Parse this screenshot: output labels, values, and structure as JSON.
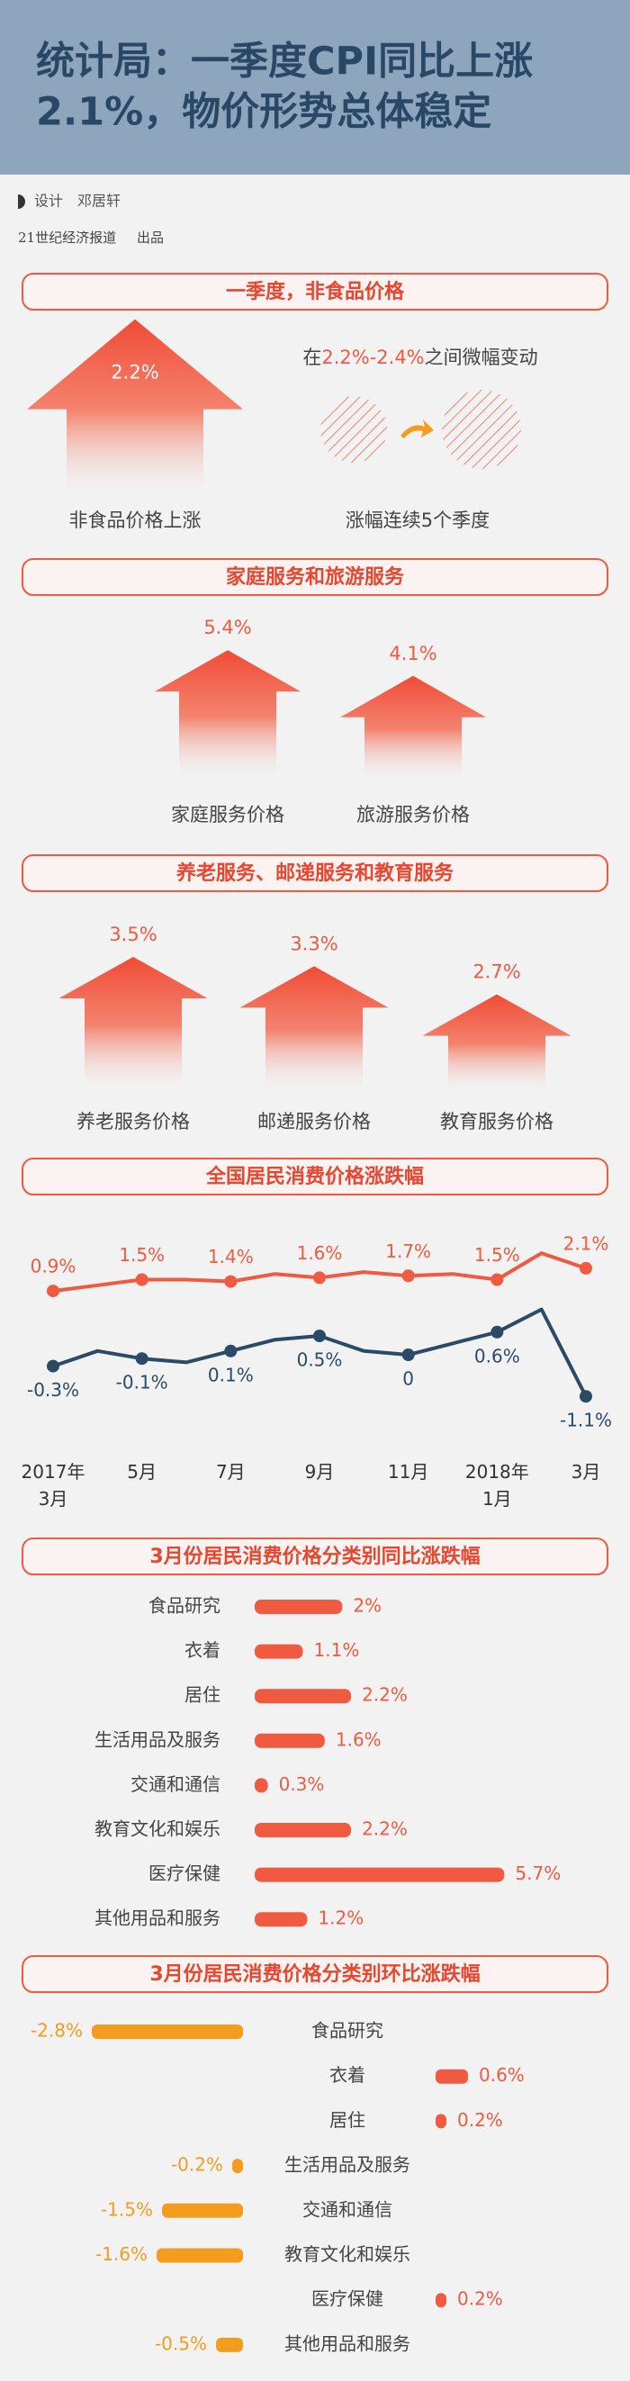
{
  "header": {
    "title_lines": [
      "统计局：一季度CPI同比上涨",
      "2.1%，物价形势总体稳定"
    ],
    "designer_label": "设计",
    "designer": "邓居轩",
    "publisher": "21世纪经济报道",
    "publisher_suffix": "出品"
  },
  "sections": [
    {
      "title": "一季度，非食品价格",
      "items": [
        {
          "value": 2.2,
          "label": "2.2%",
          "name": "非食品价格上涨"
        }
      ],
      "range_note": {
        "prefix": "在",
        "highlight": "2.2%-2.4%",
        "suffix": "之间微幅变动"
      },
      "streak": "涨幅连续5个季度"
    },
    {
      "title": "家庭服务和旅游服务",
      "items": [
        {
          "value": 5.4,
          "label": "5.4%",
          "name": "家庭服务价格"
        },
        {
          "value": 4.1,
          "label": "4.1%",
          "name": "旅游服务价格"
        }
      ]
    },
    {
      "title": "养老服务、邮递服务和教育服务",
      "items": [
        {
          "value": 3.5,
          "label": "3.5%",
          "name": "养老服务价格"
        },
        {
          "value": 3.3,
          "label": "3.3%",
          "name": "邮递服务价格"
        },
        {
          "value": 2.7,
          "label": "2.7%",
          "name": "教育服务价格"
        }
      ]
    }
  ],
  "chart_data": [
    {
      "type": "line",
      "title": "全国居民消费价格涨跌幅",
      "categories": [
        "2017年\n3月",
        null,
        "5月",
        null,
        "7月",
        null,
        "9月",
        null,
        "11月",
        null,
        "2018年\n1月",
        null,
        "3月"
      ],
      "series": [
        {
          "color": "#f05a40",
          "values": [
            0.9,
            1.2,
            1.5,
            1.5,
            1.4,
            1.8,
            1.6,
            1.9,
            1.7,
            1.8,
            1.5,
            2.9,
            2.1
          ],
          "value_labels": [
            "0.9%",
            null,
            "1.5%",
            null,
            "1.4%",
            null,
            "1.6%",
            null,
            "1.7%",
            null,
            "1.5%",
            null,
            "2.1%"
          ]
        },
        {
          "color": "#2b4a66",
          "axis": "y2",
          "values": [
            -0.3,
            0.1,
            -0.1,
            -0.2,
            0.1,
            0.4,
            0.5,
            0.1,
            0,
            0.3,
            0.6,
            1.2,
            -1.1
          ],
          "value_labels": [
            "-0.3%",
            null,
            "-0.1%",
            null,
            "0.1%",
            null,
            "0.5%",
            null,
            "0",
            null,
            "0.6%",
            null,
            "-1.1%"
          ]
        }
      ],
      "ylim": [
        -1,
        7
      ],
      "y2lim": [
        -2,
        2
      ]
    },
    {
      "type": "bar",
      "orientation": "horizontal",
      "title": "3月份居民消费价格分类别同比涨跌幅",
      "categories": [
        "食品研究",
        "衣着",
        "居住",
        "生活用品及服务",
        "交通和通信",
        "教育文化和娱乐",
        "医疗保健",
        "其他用品和服务"
      ],
      "values": [
        2,
        1.1,
        2.2,
        1.6,
        0.3,
        2.2,
        5.7,
        1.2
      ],
      "value_labels": [
        "2%",
        "1.1%",
        "2.2%",
        "1.6%",
        "0.3%",
        "2.2%",
        "5.7%",
        "1.2%"
      ],
      "color": "#f05a40",
      "xlim": [
        0,
        6
      ]
    },
    {
      "type": "diverging",
      "orientation": "horizontal",
      "title": "3月份居民消费价格分类别环比涨跌幅",
      "categories": [
        "食品研究",
        "衣着",
        "居住",
        "生活用品及服务",
        "交通和通信",
        "教育文化和娱乐",
        "医疗保健",
        "其他用品和服务"
      ],
      "values": [
        -2.8,
        0.6,
        0.2,
        -0.2,
        -1.5,
        -1.6,
        0.2,
        -0.5
      ],
      "value_labels": [
        "-2.8%",
        "0.6%",
        "0.2%",
        "-0.2%",
        "-1.5%",
        "-1.6%",
        "0.2%",
        "-0.5%"
      ],
      "color": "#f05a40",
      "negative_color": "#f39c1e",
      "xlim": [
        -3,
        3
      ]
    }
  ]
}
